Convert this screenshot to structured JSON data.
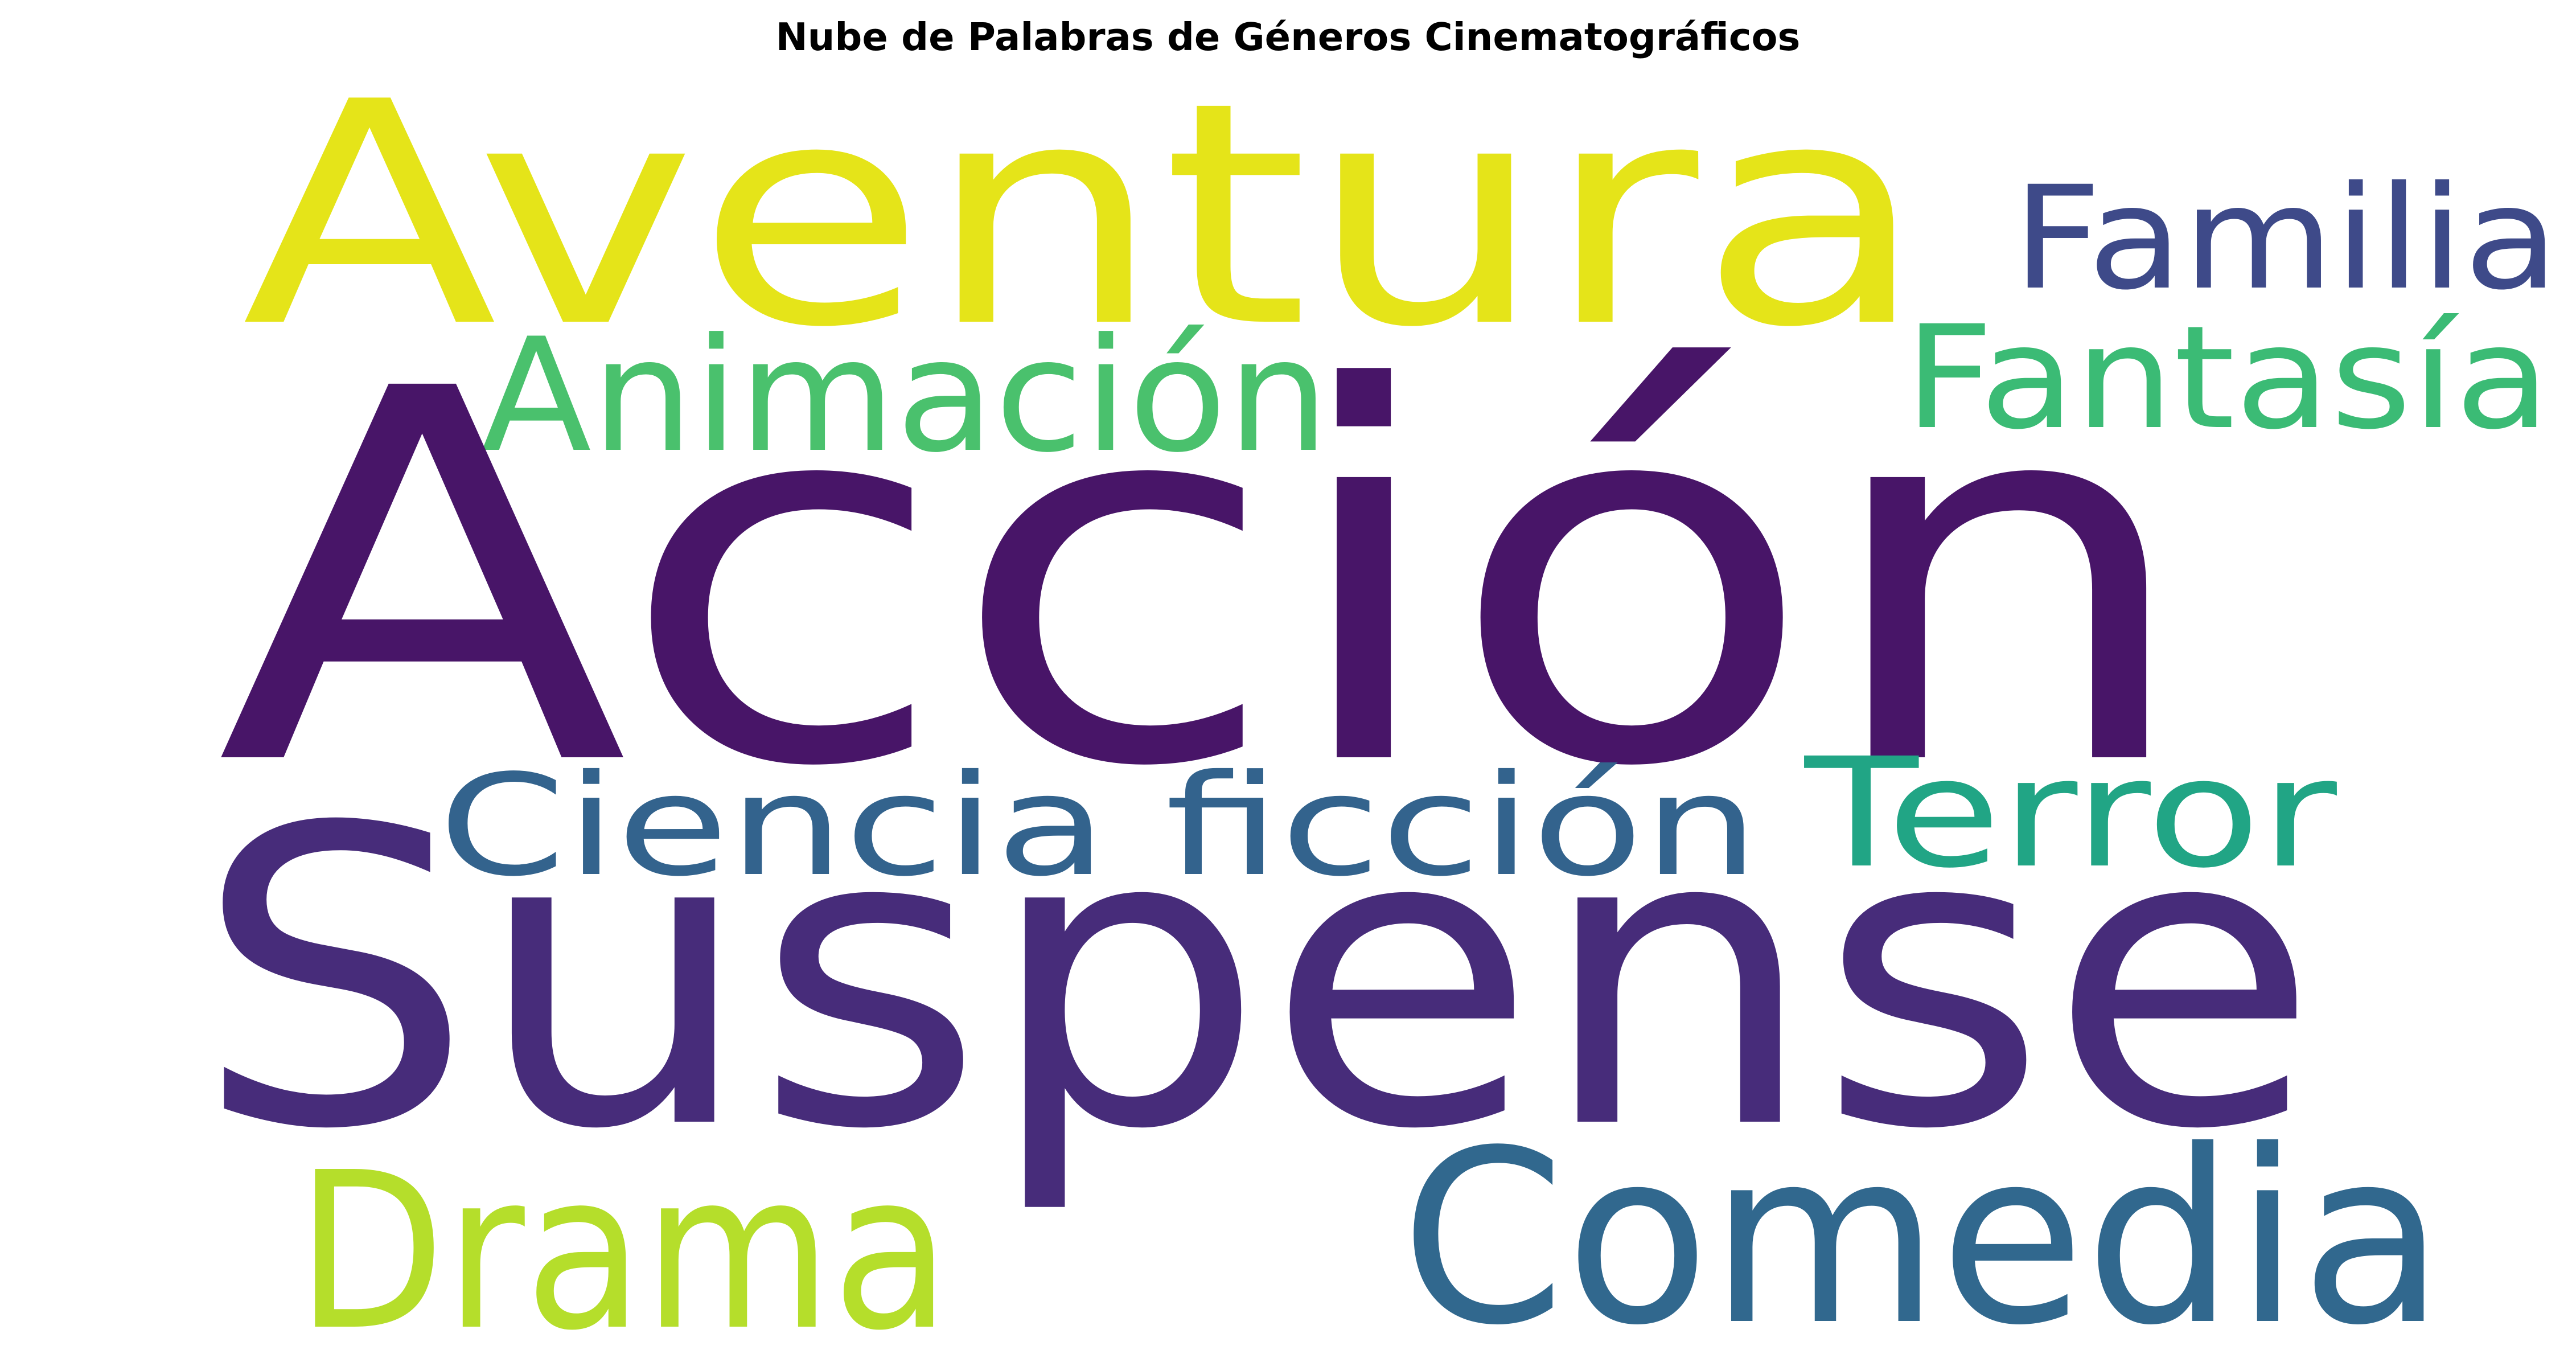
{
  "title": "Nube de Palabras de Géneros Cinematográficos",
  "words": [
    {
      "text": "Acción",
      "color": "#481568"
    },
    {
      "text": "Suspense",
      "color": "#472c7a"
    },
    {
      "text": "Aventura",
      "color": "#e5e419"
    },
    {
      "text": "Comedia",
      "color": "#31688e"
    },
    {
      "text": "Drama",
      "color": "#b5de2b"
    },
    {
      "text": "Animación",
      "color": "#4ac16d"
    },
    {
      "text": "Fantasía",
      "color": "#3bbb75"
    },
    {
      "text": "Familia",
      "color": "#3e4a89"
    },
    {
      "text": "Ciencia ficción",
      "color": "#33638d"
    },
    {
      "text": "Terror",
      "color": "#21a585"
    }
  ]
}
